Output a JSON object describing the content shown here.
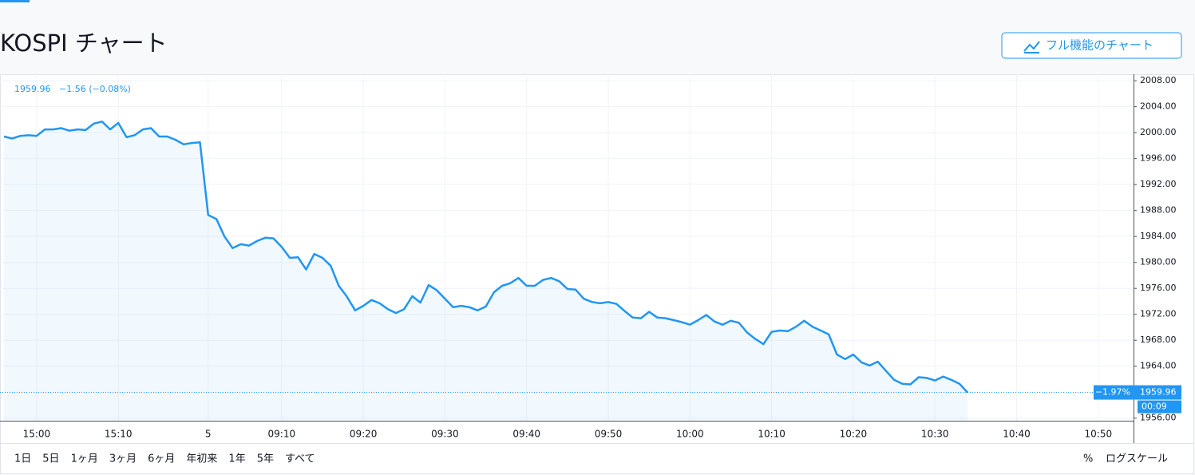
{
  "header": {
    "title": "KOSPI チャート",
    "button": "フル機能のチャート"
  },
  "chart_data": {
    "type": "line",
    "color": "#2196f3",
    "grid": true,
    "legend": {
      "price": "1959.96",
      "change": "−1.56 (−0.08%)"
    },
    "price_label": {
      "value": 1959.96,
      "change_percent": "−1.97%",
      "countdown": "00:09"
    },
    "categories": [
      null,
      null,
      null,
      null,
      "15:00",
      null,
      null,
      null,
      null,
      null,
      null,
      null,
      null,
      null,
      "15:10",
      null,
      null,
      null,
      null,
      null,
      null,
      null,
      null,
      null,
      null,
      "5",
      null,
      null,
      null,
      null,
      null,
      null,
      null,
      null,
      "09:10",
      null,
      null,
      null,
      null,
      null,
      null,
      null,
      null,
      null,
      "09:20",
      null,
      null,
      null,
      null,
      null,
      null,
      null,
      null,
      null,
      "09:30",
      null,
      null,
      null,
      null,
      null,
      null,
      null,
      null,
      null,
      "09:40",
      null,
      null,
      null,
      null,
      null,
      null,
      null,
      null,
      null,
      "09:50",
      null,
      null,
      null,
      null,
      null,
      null,
      null,
      null,
      null,
      "10:00",
      null,
      null,
      null,
      null,
      null,
      null,
      null,
      null,
      null,
      "10:10",
      null,
      null,
      null,
      null,
      null,
      null,
      null,
      null,
      null,
      "10:20",
      null,
      null,
      null,
      null,
      null,
      null,
      null,
      null,
      null,
      "10:30",
      null,
      null,
      null,
      null,
      null,
      null,
      null,
      null,
      null,
      "10:40",
      null,
      null,
      null,
      null,
      null,
      null,
      null,
      null,
      null,
      "10:50"
    ],
    "values": [
      1999.4,
      1999.1,
      1999.5,
      1999.6,
      1999.5,
      2000.5,
      2000.5,
      2000.7,
      2000.3,
      2000.5,
      2000.4,
      2001.4,
      2001.7,
      2000.5,
      2001.5,
      1999.3,
      1999.6,
      2000.5,
      2000.7,
      1999.4,
      1999.4,
      1998.9,
      1998.2,
      1998.4,
      1998.5,
      1987.3,
      1986.7,
      1984.0,
      1982.2,
      1982.8,
      1982.6,
      1983.3,
      1983.8,
      1983.7,
      1982.4,
      1980.7,
      1980.8,
      1978.9,
      1981.3,
      1980.7,
      1979.5,
      1976.4,
      1974.7,
      1972.6,
      1973.3,
      1974.2,
      1973.7,
      1972.8,
      1972.2,
      1972.8,
      1974.8,
      1973.8,
      1976.5,
      1975.7,
      1974.4,
      1973.1,
      1973.3,
      1973.1,
      1972.6,
      1973.2,
      1975.4,
      1976.4,
      1976.8,
      1977.6,
      1976.4,
      1976.4,
      1977.3,
      1977.6,
      1977.1,
      1975.9,
      1975.8,
      1974.4,
      1973.9,
      1973.7,
      1973.9,
      1973.6,
      1972.5,
      1971.5,
      1971.4,
      1972.4,
      1971.5,
      1971.4,
      1971.1,
      1970.8,
      1970.4,
      1971.1,
      1971.9,
      1970.9,
      1970.4,
      1971.0,
      1970.7,
      1969.2,
      1968.2,
      1967.4,
      1969.3,
      1969.5,
      1969.4,
      1970.1,
      1971.0,
      1970.1,
      1969.5,
      1968.9,
      1965.8,
      1965.1,
      1965.8,
      1964.6,
      1964.1,
      1964.7,
      1963.3,
      1961.9,
      1961.3,
      1961.2,
      1962.3,
      1962.2,
      1961.8,
      1962.4,
      1961.9,
      1961.3,
      1959.96,
      null,
      null,
      null,
      null,
      null,
      null,
      null,
      null,
      null,
      null,
      null,
      null,
      null,
      null,
      null,
      null
    ],
    "ylim": [
      1955.6,
      2009.0
    ],
    "yticks": [
      {
        "value": 1956,
        "label": "1956.00"
      },
      {
        "value": 1960,
        "label": "1960.00"
      },
      {
        "value": 1964,
        "label": "1964.00"
      },
      {
        "value": 1968,
        "label": "1968.00"
      },
      {
        "value": 1972,
        "label": "1972.00"
      },
      {
        "value": 1976,
        "label": "1976.00"
      },
      {
        "value": 1980,
        "label": "1980.00"
      },
      {
        "value": 1984,
        "label": "1984.00"
      },
      {
        "value": 1988,
        "label": "1988.00"
      },
      {
        "value": 1992,
        "label": "1992.00"
      },
      {
        "value": 1996,
        "label": "1996.00"
      },
      {
        "value": 2000,
        "label": "2000.00"
      },
      {
        "value": 2004,
        "label": "2004.00"
      },
      {
        "value": 2008,
        "label": "2008.00"
      }
    ]
  },
  "toolbar": {
    "ranges": [
      "1日",
      "5日",
      "1ヶ月",
      "3ヶ月",
      "6ヶ月",
      "年初来",
      "1年",
      "5年",
      "すべて"
    ],
    "percent": "%",
    "log_scale": "ログスケール"
  }
}
